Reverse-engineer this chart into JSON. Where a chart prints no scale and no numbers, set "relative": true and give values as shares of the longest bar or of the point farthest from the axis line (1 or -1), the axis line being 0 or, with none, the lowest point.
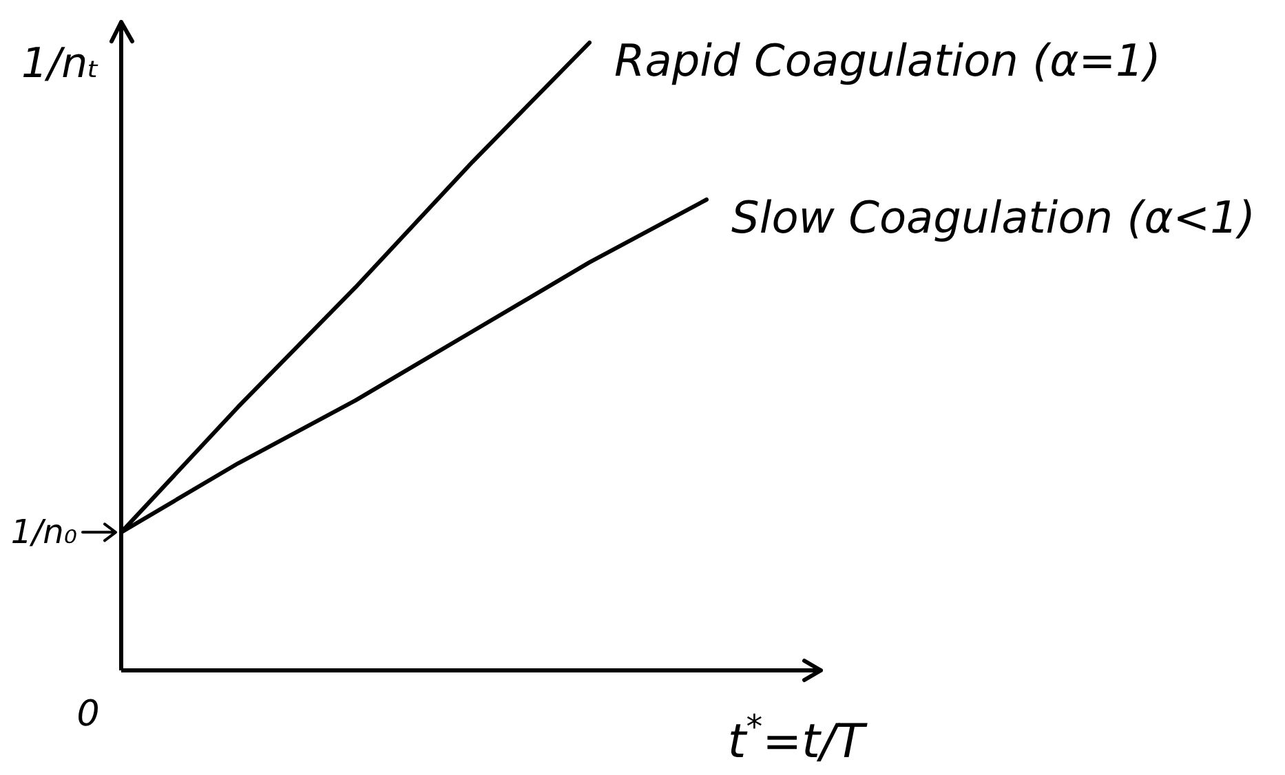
{
  "chart_data": {
    "type": "line",
    "xlabel": "t$^{*}$=t/T",
    "ylabel": "1/nₜ",
    "categories": [
      null,
      null,
      null,
      null,
      null,
      null
    ],
    "relative": true,
    "series": [
      {
        "name": "Rapid Coagulation (α=1)",
        "color": "#000000",
        "values": [
          0.22,
          0.42,
          0.61,
          0.81,
          1.0,
          null
        ]
      },
      {
        "name": "Slow Coagulation (α<1)",
        "color": "#000000",
        "values": [
          0.22,
          0.33,
          0.43,
          0.54,
          0.65,
          0.75
        ]
      }
    ],
    "annotations": [
      "0",
      "1/n₀"
    ],
    "marker": "none",
    "line_style": "solid"
  }
}
